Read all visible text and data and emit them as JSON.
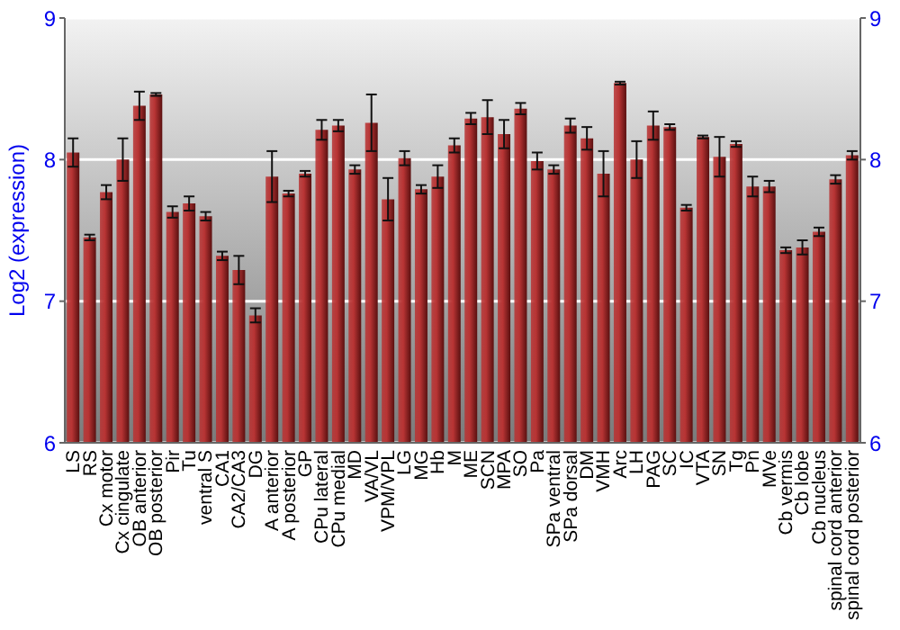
{
  "chart_data": {
    "type": "bar",
    "ylabel": "Log2 (expression)",
    "categories": [
      "LS",
      "RS",
      "Cx motor",
      "Cx cingulate",
      "OB anterior",
      "OB posterior",
      "Pir",
      "Tu",
      "ventral S",
      "CA1",
      "CA2/CA3",
      "DG",
      "A anterior",
      "A posterior",
      "GP",
      "CPu lateral",
      "CPu medial",
      "MD",
      "VA/VL",
      "VPM/VPL",
      "LG",
      "MG",
      "Hb",
      "M",
      "ME",
      "SCN",
      "MPA",
      "SO",
      "Pa",
      "SPa ventral",
      "SPa dorsal",
      "DM",
      "VMH",
      "Arc",
      "LH",
      "PAG",
      "SC",
      "IC",
      "VTA",
      "SN",
      "Tg",
      "Pn",
      "MVe",
      "Cb vermis",
      "Cb lobe",
      "Cb nucleus",
      "spinal cord anterior",
      "spinal cord posterior"
    ],
    "values": [
      8.05,
      7.45,
      7.77,
      8.0,
      8.38,
      8.46,
      7.63,
      7.69,
      7.6,
      7.32,
      7.22,
      6.9,
      7.88,
      7.76,
      7.9,
      8.21,
      8.24,
      7.93,
      8.26,
      7.72,
      8.01,
      7.79,
      7.88,
      8.1,
      8.29,
      8.3,
      8.18,
      8.36,
      7.99,
      7.93,
      8.24,
      8.15,
      7.9,
      8.54,
      8.0,
      8.24,
      8.23,
      7.66,
      8.16,
      8.02,
      8.11,
      7.81,
      7.81,
      7.36,
      7.38,
      7.49,
      7.86,
      8.03
    ],
    "errors": [
      0.1,
      0.02,
      0.05,
      0.15,
      0.1,
      0.01,
      0.04,
      0.05,
      0.03,
      0.03,
      0.1,
      0.05,
      0.18,
      0.02,
      0.02,
      0.07,
      0.04,
      0.03,
      0.2,
      0.15,
      0.05,
      0.03,
      0.08,
      0.05,
      0.04,
      0.12,
      0.1,
      0.04,
      0.06,
      0.03,
      0.05,
      0.08,
      0.16,
      0.01,
      0.13,
      0.1,
      0.02,
      0.02,
      0.01,
      0.14,
      0.02,
      0.07,
      0.04,
      0.02,
      0.05,
      0.03,
      0.03,
      0.03
    ],
    "color": "#b83434",
    "ylim": [
      6,
      9
    ],
    "yticks": [
      6,
      7,
      8,
      9
    ],
    "y2lim": [
      6,
      9
    ],
    "y2ticks": [
      6,
      7,
      8,
      9
    ],
    "grid": "y"
  }
}
